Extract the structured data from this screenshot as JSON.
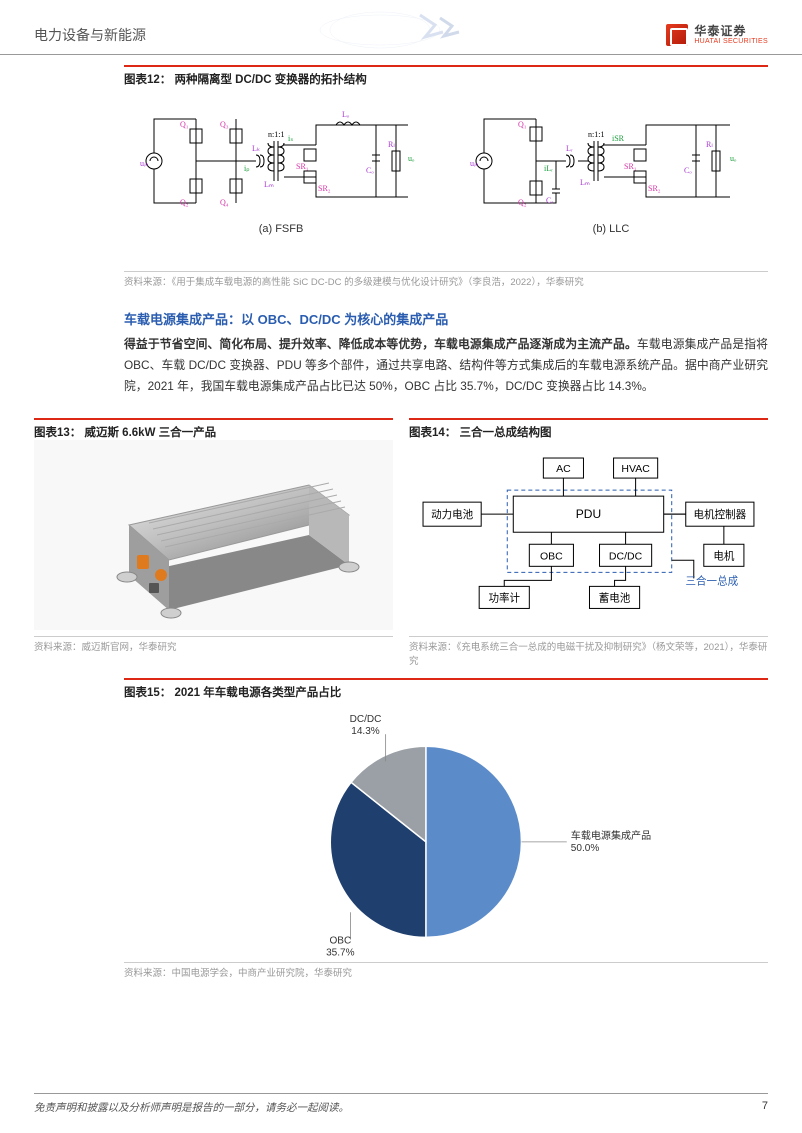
{
  "header": {
    "title": "电力设备与新能源",
    "logo_cn": "华泰证券",
    "logo_en": "HUATAI SECURITIES"
  },
  "fig12": {
    "title": "图表12：  两种隔离型 DC/DC 变换器的拓扑结构",
    "circuit_a": {
      "caption": "(a) FSFB",
      "labels": {
        "q1": "Q₁",
        "q2": "Q₂",
        "q3": "Q₃",
        "q4": "Q₄",
        "lk": "Lₖ",
        "ip": "iₚ",
        "lm": "Lₘ",
        "n": "n:1:1",
        "is": "iₛ",
        "sr1": "SR₁",
        "sr2": "SR₂",
        "lo": "Lₒ",
        "co": "Cₒ",
        "rl": "Rₗ",
        "uo": "uₒ",
        "uin": "uᵢₙ"
      }
    },
    "circuit_b": {
      "caption": "(b) LLC",
      "labels": {
        "q1": "Q₁",
        "q2": "Q₂",
        "lr": "Lᵣ",
        "lm": "Lₘ",
        "n": "n:1:1",
        "iLr": "iLᵣ",
        "isr": "iSR",
        "sr1": "SR₁",
        "sr2": "SR₂",
        "co": "Cₒ",
        "rl": "Rₗ",
        "uo": "uₒ",
        "cr": "Cᵣ",
        "uin": "uᵢₙ"
      }
    },
    "source": "资料来源：《用于集成车载电源的高性能 SiC DC-DC 的多级建模与优化设计研究》（李良浩，2022），华泰研究",
    "colors": {
      "wire": "#000000",
      "label_blue": "#a83cd1",
      "label_pink": "#d633a8",
      "label_green": "#1a9e3c"
    }
  },
  "section": {
    "heading": "车载电源集成产品：以 OBC、DC/DC 为核心的集成产品",
    "bold": "得益于节省空间、简化布局、提升效率、降低成本等优势，车载电源集成产品逐渐成为主流产品。",
    "rest": "车载电源集成产品是指将 OBC、车载 DC/DC 变换器、PDU 等多个部件，通过共享电路、结构件等方式集成后的车载电源系统产品。据中商产业研究院，2021 年，我国车载电源集成产品占比已达 50%，OBC 占比 35.7%，DC/DC 变换器占比 14.3%。"
  },
  "fig13": {
    "title": "图表13：  威迈斯 6.6kW 三合一产品",
    "source": "资料来源：威迈斯官网，华泰研究"
  },
  "fig14": {
    "title": "图表14：  三合一总成结构图",
    "source": "资料来源：《充电系统三合一总成的电磁干扰及抑制研究》（杨文荣等，2021），华泰研究",
    "nodes": {
      "ac": "AC",
      "hvac": "HVAC",
      "battery": "动力电池",
      "pdu": "PDU",
      "controller": "电机控制器",
      "obc": "OBC",
      "dcdc": "DC/DC",
      "motor": "电机",
      "power_meter": "功率计",
      "storage": "蓄电池",
      "group_label": "三合一总成"
    },
    "colors": {
      "border": "#000000",
      "text": "#000000",
      "dash": "#2a5db0"
    }
  },
  "fig15": {
    "title": "图表15：  2021 年车载电源各类型产品占比",
    "source": "资料来源：中国电源学会，中商产业研究院，华泰研究",
    "type": "pie",
    "slices": [
      {
        "label": "车载电源集成产品",
        "pct": 50.0,
        "display": "车载电源集成产品\n50.0%",
        "color": "#5b8cc9"
      },
      {
        "label": "OBC",
        "pct": 35.7,
        "display": "OBC\n35.7%",
        "color": "#1f3f6e"
      },
      {
        "label": "DC/DC",
        "pct": 14.3,
        "display": "DC/DC\n14.3%",
        "color": "#9aa0a6"
      }
    ],
    "label_fontsize": 10,
    "background": "#ffffff",
    "start_angle": -90,
    "label_dcdc": "DC/DC",
    "label_dcdc_pct": "14.3%",
    "label_obc": "OBC",
    "label_obc_pct": "35.7%",
    "label_int": "车载电源集成产品",
    "label_int_pct": "50.0%"
  },
  "footer": {
    "text": "免责声明和披露以及分析师声明是报告的一部分，请务必一起阅读。",
    "page": "7"
  }
}
